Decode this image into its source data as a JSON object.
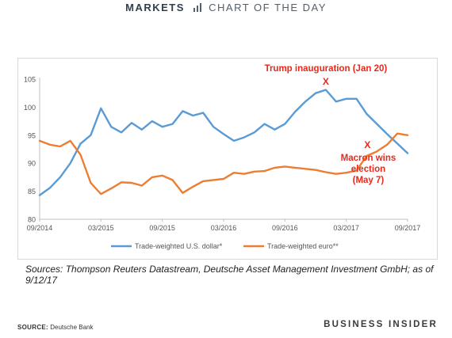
{
  "header": {
    "brand": "MARKETS",
    "title": "CHART OF THE DAY"
  },
  "chart_data": {
    "type": "line",
    "ylim": [
      80,
      105
    ],
    "yticks": [
      80,
      85,
      90,
      95,
      100,
      105
    ],
    "x_ticklabels": [
      "09/2014",
      "03/2015",
      "09/2015",
      "03/2016",
      "09/2016",
      "03/2017",
      "09/2017"
    ],
    "x_range": [
      "09/2014",
      "09/2017"
    ],
    "grid": false,
    "legend_position": "bottom",
    "series": [
      {
        "name": "Trade-weighted U.S. dollar*",
        "color": "#5b9bd5",
        "points": [
          [
            "09/2014",
            84.3
          ],
          [
            "10/2014",
            85.6
          ],
          [
            "11/2014",
            87.5
          ],
          [
            "12/2014",
            90.0
          ],
          [
            "01/2015",
            93.5
          ],
          [
            "02/2015",
            95.0
          ],
          [
            "03/2015",
            99.8
          ],
          [
            "04/2015",
            96.5
          ],
          [
            "05/2015",
            95.5
          ],
          [
            "06/2015",
            97.2
          ],
          [
            "07/2015",
            96.0
          ],
          [
            "08/2015",
            97.5
          ],
          [
            "09/2015",
            96.5
          ],
          [
            "10/2015",
            97.0
          ],
          [
            "11/2015",
            99.3
          ],
          [
            "12/2015",
            98.5
          ],
          [
            "01/2016",
            99.0
          ],
          [
            "02/2016",
            96.5
          ],
          [
            "03/2016",
            95.2
          ],
          [
            "04/2016",
            94.0
          ],
          [
            "05/2016",
            94.6
          ],
          [
            "06/2016",
            95.5
          ],
          [
            "07/2016",
            97.0
          ],
          [
            "08/2016",
            96.0
          ],
          [
            "09/2016",
            97.0
          ],
          [
            "10/2016",
            99.2
          ],
          [
            "11/2016",
            101.0
          ],
          [
            "12/2016",
            102.5
          ],
          [
            "01/2017",
            103.1
          ],
          [
            "02/2017",
            101.0
          ],
          [
            "03/2017",
            101.5
          ],
          [
            "04/2017",
            101.5
          ],
          [
            "05/2017",
            98.8
          ],
          [
            "06/2017",
            97.0
          ],
          [
            "07/2017",
            95.2
          ],
          [
            "08/2017",
            93.5
          ],
          [
            "09/2017",
            91.8
          ]
        ]
      },
      {
        "name": "Trade-weighted euro**",
        "color": "#ed7d31",
        "points": [
          [
            "09/2014",
            94.0
          ],
          [
            "10/2014",
            93.3
          ],
          [
            "11/2014",
            93.0
          ],
          [
            "12/2014",
            94.0
          ],
          [
            "01/2015",
            91.5
          ],
          [
            "02/2015",
            86.5
          ],
          [
            "03/2015",
            84.5
          ],
          [
            "04/2015",
            85.5
          ],
          [
            "05/2015",
            86.6
          ],
          [
            "06/2015",
            86.5
          ],
          [
            "07/2015",
            86.0
          ],
          [
            "08/2015",
            87.5
          ],
          [
            "09/2015",
            87.8
          ],
          [
            "10/2015",
            87.0
          ],
          [
            "11/2015",
            84.7
          ],
          [
            "12/2015",
            85.8
          ],
          [
            "01/2016",
            86.8
          ],
          [
            "02/2016",
            87.0
          ],
          [
            "03/2016",
            87.2
          ],
          [
            "04/2016",
            88.3
          ],
          [
            "05/2016",
            88.1
          ],
          [
            "06/2016",
            88.5
          ],
          [
            "07/2016",
            88.6
          ],
          [
            "08/2016",
            89.2
          ],
          [
            "09/2016",
            89.4
          ],
          [
            "10/2016",
            89.2
          ],
          [
            "11/2016",
            89.0
          ],
          [
            "12/2016",
            88.8
          ],
          [
            "01/2017",
            88.4
          ],
          [
            "02/2017",
            88.1
          ],
          [
            "03/2017",
            88.3
          ],
          [
            "04/2017",
            88.7
          ],
          [
            "05/2017",
            91.3
          ],
          [
            "06/2017",
            92.1
          ],
          [
            "07/2017",
            93.3
          ],
          [
            "08/2017",
            95.3
          ],
          [
            "09/2017",
            95.0
          ]
        ]
      }
    ],
    "annotations": [
      {
        "id": "trump",
        "text_lines": [
          "Trump inauguration (Jan 20)"
        ],
        "marker": "X",
        "at": [
          "01/2017",
          103.3
        ],
        "color": "#e8291c"
      },
      {
        "id": "macron",
        "text_lines": [
          "Macron wins",
          "election",
          "(May 7)"
        ],
        "marker": "X",
        "at": [
          "05/2017",
          92.0
        ],
        "color": "#e8291c"
      }
    ]
  },
  "sources_note": "Sources: Thompson Reuters Datastream, Deutsche Asset Management Investment GmbH; as of 9/12/17",
  "footer": {
    "source_label": "SOURCE:",
    "source_value": "Deutsche Bank",
    "brand": "BUSINESS INSIDER"
  }
}
